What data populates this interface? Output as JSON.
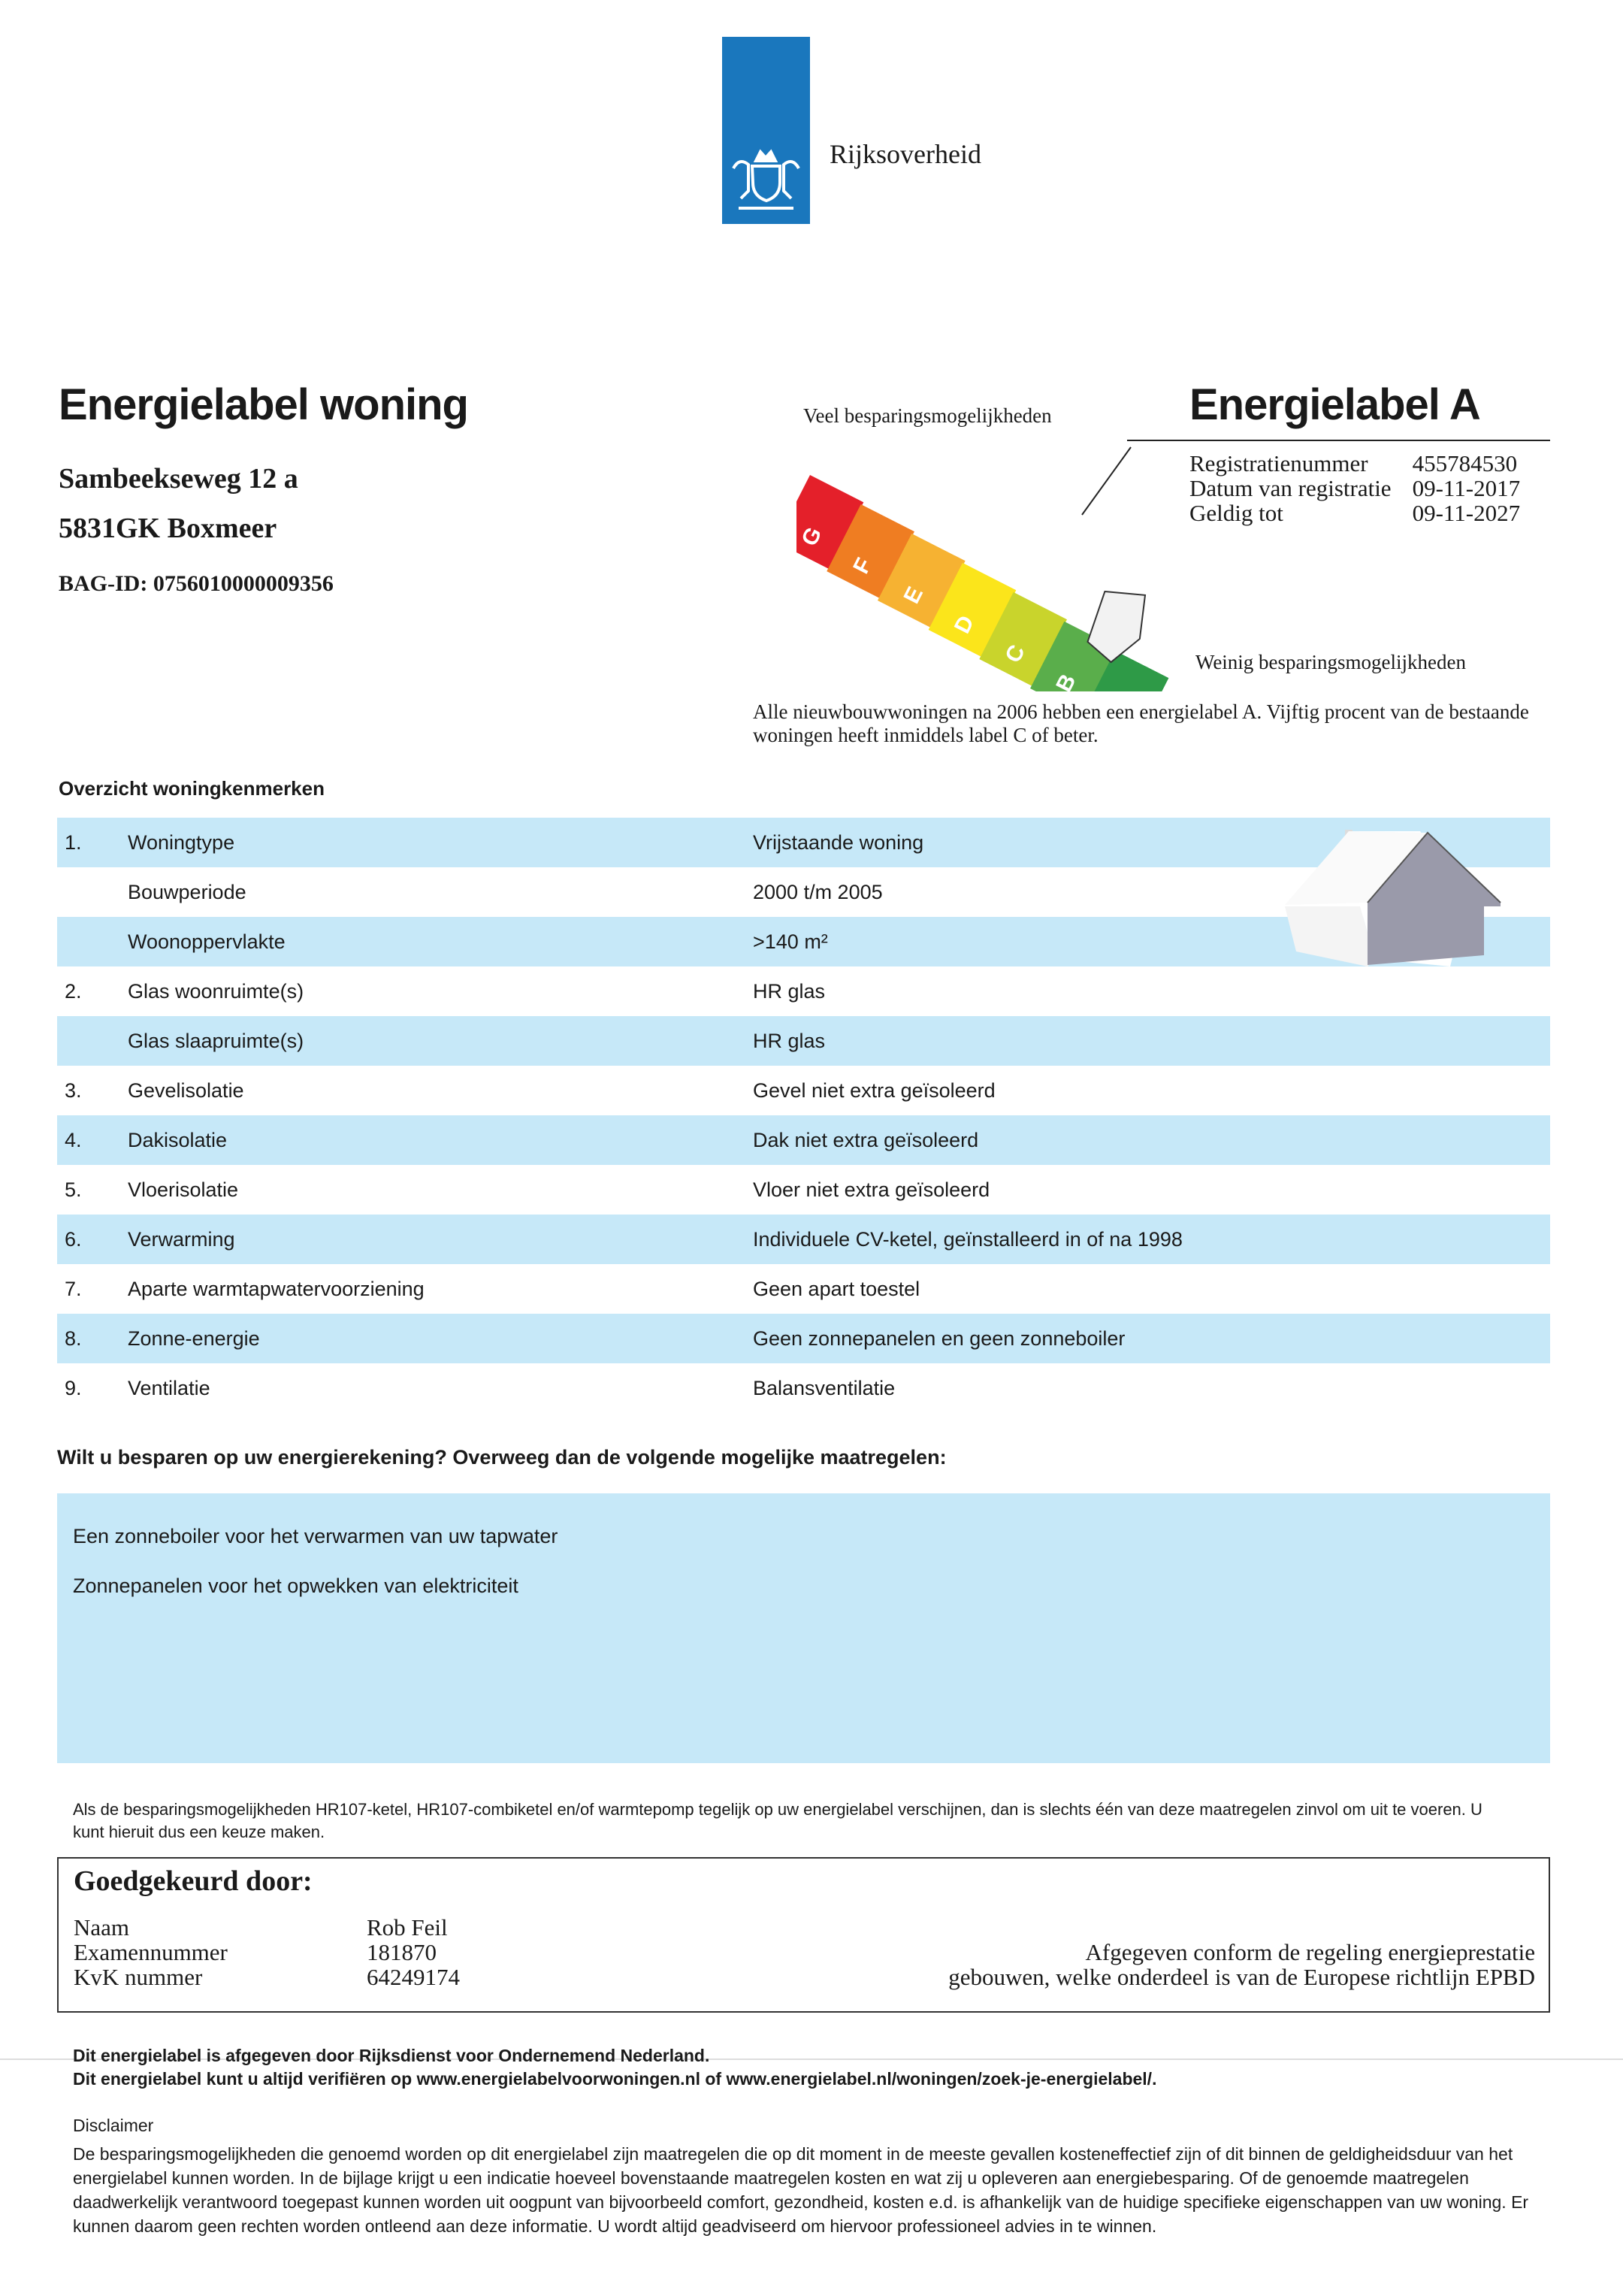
{
  "header": {
    "logo_text": "Rijksoverheid",
    "brand_color": "#1a77bd",
    "logo_icon": "coat-of-arms-icon"
  },
  "doc": {
    "title": "Energielabel woning",
    "address_line1": "Sambeekseweg 12 a",
    "address_line2": "5831GK Boxmeer",
    "bag_id": "BAG-ID: 0756010000009356"
  },
  "label": {
    "veel": "Veel besparingsmogelijkheden",
    "weinig": "Weinig besparingsmogelijkheden",
    "title": "Energielabel A",
    "current": "A",
    "classes": [
      "G",
      "F",
      "E",
      "D",
      "C",
      "B",
      "A"
    ],
    "class_colors": [
      "#e4202a",
      "#ef7d22",
      "#f6b232",
      "#fbe51b",
      "#c9d42c",
      "#5aae4b",
      "#2e9a47"
    ],
    "reg": [
      {
        "k": "Registratienummer",
        "v": "455784530"
      },
      {
        "k": "Datum van registratie",
        "v": "09-11-2017"
      },
      {
        "k": "Geldig tot",
        "v": "09-11-2027"
      }
    ],
    "info": "Alle nieuwbouwwoningen na 2006 hebben een energielabel A. Vijftig procent van de bestaande woningen heeft inmiddels label C of beter."
  },
  "overview": {
    "heading": "Overzicht woningkenmerken",
    "row_color": "#c6e8f8",
    "rows": [
      {
        "num": "1.",
        "label": "Woningtype",
        "value": "Vrijstaande woning"
      },
      {
        "num": "",
        "label": "Bouwperiode",
        "value": "2000 t/m 2005"
      },
      {
        "num": "",
        "label": "Woonoppervlakte",
        "value": ">140 m²"
      },
      {
        "num": "2.",
        "label": "Glas woonruimte(s)",
        "value": "HR glas"
      },
      {
        "num": "",
        "label": "Glas slaapruimte(s)",
        "value": "HR glas"
      },
      {
        "num": "3.",
        "label": "Gevelisolatie",
        "value": "Gevel niet extra geïsoleerd"
      },
      {
        "num": "4.",
        "label": "Dakisolatie",
        "value": "Dak niet extra geïsoleerd"
      },
      {
        "num": "5.",
        "label": "Vloerisolatie",
        "value": "Vloer niet extra geïsoleerd"
      },
      {
        "num": "6.",
        "label": "Verwarming",
        "value": "Individuele CV-ketel, geïnstalleerd in of na 1998"
      },
      {
        "num": "7.",
        "label": "Aparte warmtapwatervoorziening",
        "value": "Geen apart toestel"
      },
      {
        "num": "8.",
        "label": "Zonne-energie",
        "value": "Geen zonnepanelen en geen zonneboiler"
      },
      {
        "num": "9.",
        "label": "Ventilatie",
        "value": "Balansventilatie"
      }
    ]
  },
  "measures": {
    "heading": "Wilt u besparen op uw energierekening? Overweeg dan de volgende mogelijke maatregelen:",
    "items": [
      "Een zonneboiler voor het verwarmen van uw tapwater",
      "Zonnepanelen voor het opwekken van elektriciteit"
    ],
    "note": "Als de besparingsmogelijkheden HR107-ketel, HR107-combiketel en/of warmtepomp tegelijk op uw energielabel verschijnen, dan is slechts één van deze maatregelen zinvol om uit te voeren. U kunt hieruit dus een keuze maken."
  },
  "approved": {
    "title": "Goedgekeurd door:",
    "fields": [
      {
        "k": "Naam",
        "v": "Rob Feil"
      },
      {
        "k": "Examennummer",
        "v": "181870"
      },
      {
        "k": "KvK nummer",
        "v": "64249174"
      }
    ],
    "right_line1": "Afgegeven conform de regeling energieprestatie",
    "right_line2": "gebouwen, welke onderdeel is van de Europese richtlijn EPBD"
  },
  "footer": {
    "line1": "Dit energielabel is afgegeven door Rijksdienst voor Ondernemend Nederland.",
    "line2": "Dit energielabel kunt u altijd verifiëren op www.energielabelvoorwoningen.nl of www.energielabel.nl/woningen/zoek-je-energielabel/.",
    "disclaimer_title": "Disclaimer",
    "disclaimer": "De besparingsmogelijkheden die genoemd worden op dit energielabel zijn maatregelen die op dit moment in de meeste gevallen kosteneffectief zijn of dit binnen de geldigheidsduur van het energielabel kunnen worden. In de bijlage krijgt u een indicatie hoeveel bovenstaande maatregelen kosten en wat zij u opleveren aan energiebesparing. Of de genoemde maatregelen daadwerkelijk verantwoord toegepast kunnen worden uit oogpunt van bijvoorbeeld comfort, gezondheid, kosten e.d. is afhankelijk van de huidige specifieke eigenschappen van uw woning. Er kunnen daarom geen rechten worden ontleend aan deze informatie. U wordt altijd geadviseerd om hiervoor professioneel advies in te winnen."
  }
}
